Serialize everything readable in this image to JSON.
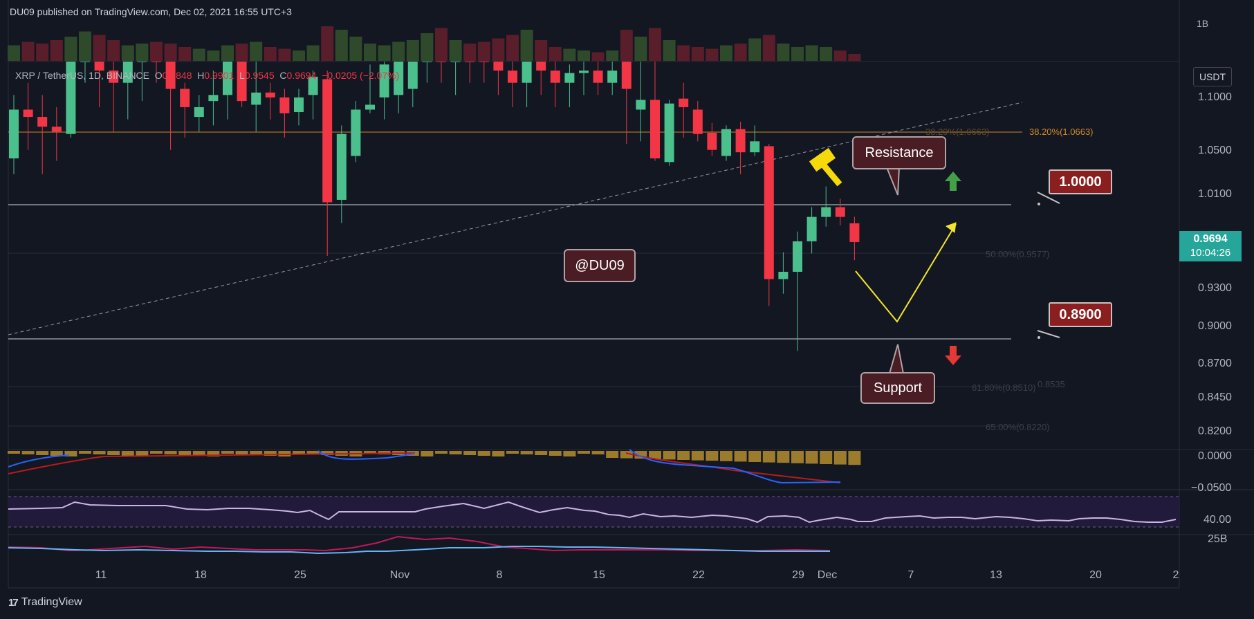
{
  "header": {
    "publisher_line": "DU09 published on TradingView.com, Dec 02, 2021 16:55 UTC+3"
  },
  "symbol_info": {
    "symbol": "XRP / TetherUS, 1D, BINANCE",
    "open_label": "O",
    "open_value": "0.9848",
    "high_label": "H",
    "high_value": "0.9901",
    "low_label": "L",
    "low_value": "0.9545",
    "close_label": "C",
    "close_value": "0.9694",
    "change": "−0.0205 (−2.07%)"
  },
  "price_axis": {
    "currency": "USDT",
    "ticks": [
      "1.1000",
      "1.0500",
      "1.0100",
      "0.9300",
      "0.9000",
      "0.8700",
      "0.8450",
      "0.8200"
    ],
    "macd_ticks": [
      "0.0000",
      "−0.0500"
    ],
    "rsi_tick": "40.00",
    "volume_tick": "25B",
    "top_label": "1B"
  },
  "current_price": {
    "value": "0.9694",
    "countdown": "10:04:26",
    "color": "#26a69a"
  },
  "time_axis": {
    "labels": [
      "11",
      "18",
      "25",
      "Nov",
      "8",
      "15",
      "22",
      "29",
      "Dec",
      "7",
      "13",
      "20",
      "2"
    ]
  },
  "fib_labels": {
    "level_382": "38.20%(1.0663)",
    "level_382_left": "38.20%(1.0663)",
    "level_50": "50.00%(0.9577)",
    "level_618": "61.80%(0.8510)",
    "level_618b": "0.8535",
    "level_65": "65.00%(0.8220)"
  },
  "annotations": {
    "resistance": "Resistance",
    "support": "Support",
    "watermark": "@DU09",
    "level_high": "1.0000",
    "level_low": "0.8900"
  },
  "footer": {
    "brand": "TradingView"
  },
  "colors": {
    "bull": "#26a69a",
    "bull_candle": "#4bbf8c",
    "bear": "#f23645",
    "volume_bull": "#2e4a2b",
    "volume_bear": "#5a1d2a",
    "macd_hist": "#9c7c2c",
    "macd_line": "#2962ff",
    "signal_line": "#b71c1c",
    "rsi_line": "#b39ddb",
    "rsi_band": "#2a1e48",
    "fib_382": "#d18a2a"
  },
  "chart_data": {
    "type": "candlestick",
    "title": "XRP / TetherUS, 1D, BINANCE",
    "ylim": [
      0.8,
      1.12
    ],
    "candles": [
      {
        "o": 1.038,
        "h": 1.09,
        "l": 1.025,
        "c": 1.078
      },
      {
        "o": 1.078,
        "h": 1.1,
        "l": 1.045,
        "c": 1.072
      },
      {
        "o": 1.072,
        "h": 1.09,
        "l": 1.025,
        "c": 1.064
      },
      {
        "o": 1.064,
        "h": 1.08,
        "l": 1.036,
        "c": 1.06
      },
      {
        "o": 1.058,
        "h": 1.12,
        "l": 1.055,
        "c": 1.12
      },
      {
        "o": 1.12,
        "h": 1.15,
        "l": 1.1,
        "c": 1.12
      },
      {
        "o": 1.12,
        "h": 1.14,
        "l": 1.08,
        "c": 1.11
      },
      {
        "o": 1.11,
        "h": 1.13,
        "l": 1.06,
        "c": 1.1
      },
      {
        "o": 1.1,
        "h": 1.135,
        "l": 1.07,
        "c": 1.125
      },
      {
        "o": 1.125,
        "h": 1.15,
        "l": 1.085,
        "c": 1.135
      },
      {
        "o": 1.14,
        "h": 1.16,
        "l": 1.1,
        "c": 1.12
      },
      {
        "o": 1.12,
        "h": 1.14,
        "l": 1.045,
        "c": 1.095
      },
      {
        "o": 1.095,
        "h": 1.1,
        "l": 1.055,
        "c": 1.08
      },
      {
        "o": 1.072,
        "h": 1.09,
        "l": 1.06,
        "c": 1.08
      },
      {
        "o": 1.085,
        "h": 1.11,
        "l": 1.065,
        "c": 1.09
      },
      {
        "o": 1.09,
        "h": 1.13,
        "l": 1.07,
        "c": 1.12
      },
      {
        "o": 1.12,
        "h": 1.15,
        "l": 1.08,
        "c": 1.085
      },
      {
        "o": 1.082,
        "h": 1.12,
        "l": 1.06,
        "c": 1.092
      },
      {
        "o": 1.092,
        "h": 1.1,
        "l": 1.07,
        "c": 1.088
      },
      {
        "o": 1.088,
        "h": 1.095,
        "l": 1.055,
        "c": 1.075
      },
      {
        "o": 1.076,
        "h": 1.095,
        "l": 1.065,
        "c": 1.088
      },
      {
        "o": 1.09,
        "h": 1.11,
        "l": 1.07,
        "c": 1.105
      },
      {
        "o": 1.103,
        "h": 1.11,
        "l": 0.958,
        "c": 1.002
      },
      {
        "o": 1.004,
        "h": 1.065,
        "l": 0.985,
        "c": 1.058
      },
      {
        "o": 1.04,
        "h": 1.085,
        "l": 1.035,
        "c": 1.078
      },
      {
        "o": 1.078,
        "h": 1.115,
        "l": 1.075,
        "c": 1.082
      },
      {
        "o": 1.088,
        "h": 1.12,
        "l": 1.07,
        "c": 1.115
      },
      {
        "o": 1.09,
        "h": 1.12,
        "l": 1.075,
        "c": 1.12
      },
      {
        "o": 1.095,
        "h": 1.13,
        "l": 1.08,
        "c": 1.13
      },
      {
        "o": 1.13,
        "h": 1.14,
        "l": 1.1,
        "c": 1.13
      },
      {
        "o": 1.13,
        "h": 1.14,
        "l": 1.1,
        "c": 1.12
      },
      {
        "o": 1.12,
        "h": 1.14,
        "l": 1.09,
        "c": 1.13
      },
      {
        "o": 1.13,
        "h": 1.14,
        "l": 1.1,
        "c": 1.125
      },
      {
        "o": 1.125,
        "h": 1.135,
        "l": 1.1,
        "c": 1.12
      },
      {
        "o": 1.12,
        "h": 1.13,
        "l": 1.09,
        "c": 1.11
      },
      {
        "o": 1.11,
        "h": 1.12,
        "l": 1.08,
        "c": 1.1
      },
      {
        "o": 1.1,
        "h": 1.13,
        "l": 1.08,
        "c": 1.12
      },
      {
        "o": 1.12,
        "h": 1.13,
        "l": 1.09,
        "c": 1.11
      },
      {
        "o": 1.11,
        "h": 1.12,
        "l": 1.08,
        "c": 1.1
      },
      {
        "o": 1.1,
        "h": 1.115,
        "l": 1.08,
        "c": 1.108
      },
      {
        "o": 1.108,
        "h": 1.12,
        "l": 1.09,
        "c": 1.11
      },
      {
        "o": 1.11,
        "h": 1.12,
        "l": 1.09,
        "c": 1.1
      },
      {
        "o": 1.1,
        "h": 1.12,
        "l": 1.09,
        "c": 1.11
      },
      {
        "o": 1.14,
        "h": 1.16,
        "l": 1.05,
        "c": 1.095
      },
      {
        "o": 1.078,
        "h": 1.12,
        "l": 1.052,
        "c": 1.086
      },
      {
        "o": 1.086,
        "h": 1.13,
        "l": 1.036,
        "c": 1.038
      },
      {
        "o": 1.035,
        "h": 1.086,
        "l": 1.032,
        "c": 1.083
      },
      {
        "o": 1.087,
        "h": 1.1,
        "l": 1.055,
        "c": 1.08
      },
      {
        "o": 1.078,
        "h": 1.085,
        "l": 1.052,
        "c": 1.058
      },
      {
        "o": 1.059,
        "h": 1.067,
        "l": 1.04,
        "c": 1.045
      },
      {
        "o": 1.04,
        "h": 1.065,
        "l": 1.036,
        "c": 1.062
      },
      {
        "o": 1.062,
        "h": 1.068,
        "l": 1.025,
        "c": 1.043
      },
      {
        "o": 1.043,
        "h": 1.065,
        "l": 1.04,
        "c": 1.052
      },
      {
        "o": 1.048,
        "h": 1.05,
        "l": 0.917,
        "c": 0.939
      },
      {
        "o": 0.939,
        "h": 0.961,
        "l": 0.927,
        "c": 0.945
      },
      {
        "o": 0.945,
        "h": 0.978,
        "l": 0.88,
        "c": 0.97
      },
      {
        "o": 0.97,
        "h": 0.998,
        "l": 0.96,
        "c": 0.99
      },
      {
        "o": 0.99,
        "h": 1.015,
        "l": 0.982,
        "c": 0.998
      },
      {
        "o": 0.998,
        "h": 1.005,
        "l": 0.983,
        "c": 0.99
      },
      {
        "o": 0.9848,
        "h": 0.9901,
        "l": 0.9545,
        "c": 0.9694
      }
    ],
    "volume": [
      0.45,
      0.55,
      0.5,
      0.6,
      0.7,
      0.85,
      0.75,
      0.6,
      0.45,
      0.5,
      0.55,
      0.5,
      0.4,
      0.35,
      0.3,
      0.45,
      0.5,
      0.55,
      0.4,
      0.35,
      0.3,
      0.45,
      1.0,
      0.9,
      0.7,
      0.5,
      0.45,
      0.55,
      0.6,
      0.8,
      0.95,
      0.6,
      0.5,
      0.55,
      0.65,
      0.75,
      0.9,
      0.6,
      0.4,
      0.35,
      0.3,
      0.25,
      0.3,
      0.9,
      0.7,
      0.95,
      0.6,
      0.45,
      0.4,
      0.35,
      0.45,
      0.5,
      0.65,
      0.75,
      0.5,
      0.4,
      0.45,
      0.4,
      0.3,
      0.2
    ],
    "horizontal_levels": [
      1.0,
      0.89
    ],
    "fib_levels": [
      1.0663,
      0.9577,
      0.851,
      0.822
    ],
    "trendline": {
      "from": [
        0,
        0.895
      ],
      "to": [
        71,
        1.098
      ]
    },
    "projection": [
      [
        61.5,
        0.94
      ],
      [
        65,
        0.9
      ],
      [
        69,
        1.0
      ]
    ]
  }
}
